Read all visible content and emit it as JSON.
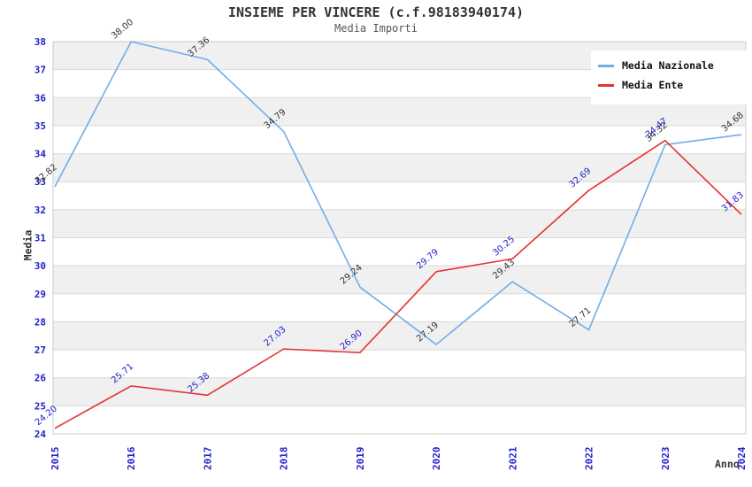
{
  "header": {
    "title": "INSIEME PER VINCERE (c.f.98183940174)",
    "subtitle": "Media Importi"
  },
  "chart_data": {
    "type": "line",
    "x": [
      2015,
      2016,
      2017,
      2018,
      2019,
      2020,
      2021,
      2022,
      2023,
      2024
    ],
    "series": [
      {
        "name": "Media Nazionale",
        "color": "#72ade8",
        "label_color": "#333333",
        "values": [
          32.82,
          38.0,
          37.36,
          34.79,
          29.24,
          27.19,
          29.43,
          27.71,
          34.32,
          34.68
        ]
      },
      {
        "name": "Media Ente",
        "color": "#e53232",
        "label_color": "#2222cc",
        "values": [
          24.2,
          25.71,
          25.38,
          27.03,
          26.9,
          29.79,
          30.25,
          32.69,
          34.47,
          31.83
        ]
      }
    ],
    "title": "INSIEME PER VINCERE (c.f.98183940174)",
    "subtitle": "Media Importi",
    "xlabel": "Anno",
    "ylabel": "Media",
    "ylim": [
      24,
      38
    ],
    "y_tick_step": 1,
    "grid": true,
    "legend_position": "top-right",
    "tick_color": "#2222cc",
    "band_color": "#f0f0f0",
    "grid_color": "#d9d9d9",
    "border_color": "#cccccc"
  }
}
